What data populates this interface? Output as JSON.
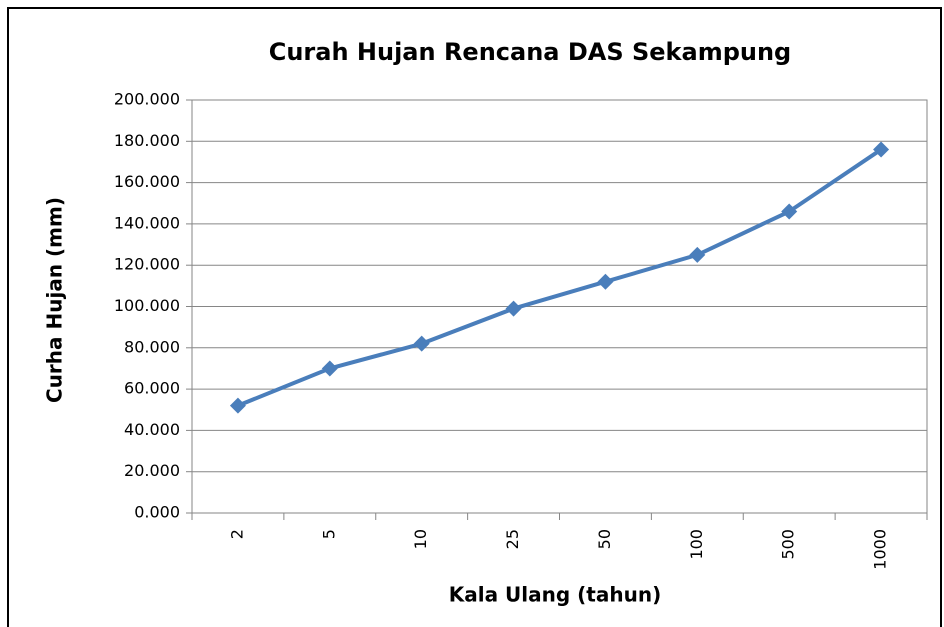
{
  "chart_data": {
    "type": "line",
    "title": "Curah Hujan Rencana DAS Sekampung",
    "x_label": "Kala Ulang (tahun)",
    "y_label": "Curha Hujan (mm)",
    "categories": [
      "2",
      "5",
      "10",
      "25",
      "50",
      "100",
      "500",
      "1000"
    ],
    "series": [
      {
        "name": "Curah Hujan",
        "color": "#4a7ebb",
        "values": [
          52,
          70,
          82,
          99,
          112,
          125,
          146,
          176
        ]
      }
    ],
    "ylim": [
      0,
      200
    ],
    "yticks": [
      {
        "value": 0,
        "label": "0.000"
      },
      {
        "value": 20,
        "label": "20.000"
      },
      {
        "value": 40,
        "label": "40.000"
      },
      {
        "value": 60,
        "label": "60.000"
      },
      {
        "value": 80,
        "label": "80.000"
      },
      {
        "value": 100,
        "label": "100.000"
      },
      {
        "value": 120,
        "label": "120.000"
      },
      {
        "value": 140,
        "label": "140.000"
      },
      {
        "value": 160,
        "label": "160.000"
      },
      {
        "value": 180,
        "label": "180.000"
      },
      {
        "value": 200,
        "label": "200.000"
      }
    ],
    "grid": true
  }
}
